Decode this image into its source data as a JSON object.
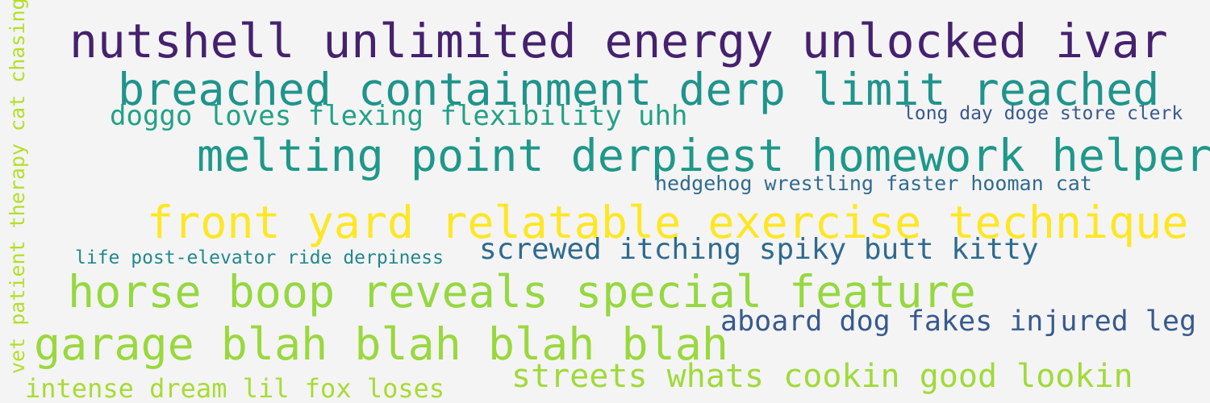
{
  "words": [
    {
      "text": "nutshell unlimited energy unlocked ivar",
      "color": "#45216e"
    },
    {
      "text": "breached containment derp limit reached",
      "color": "#1f948c"
    },
    {
      "text": "doggo loves flexing flexibility uhh",
      "color": "#22a186"
    },
    {
      "text": "long day doge store clerk",
      "color": "#38598c"
    },
    {
      "text": "melting point derpiest homework helper",
      "color": "#1e988a"
    },
    {
      "text": "hedgehog wrestling faster hooman cat",
      "color": "#306c8e"
    },
    {
      "text": "front yard relatable exercise technique",
      "color": "#fde725"
    },
    {
      "text": "life post-elevator ride derpiness",
      "color": "#23888e"
    },
    {
      "text": "screwed itching spiky butt kitty",
      "color": "#2f6b8e"
    },
    {
      "text": "horse boop reveals special feature",
      "color": "#95d840"
    },
    {
      "text": "aboard dog fakes injured leg",
      "color": "#375a8c"
    },
    {
      "text": "garage blah blah blah blah",
      "color": "#9ad83e"
    },
    {
      "text": "streets whats cookin good lookin",
      "color": "#a0da39"
    },
    {
      "text": "intense dream lil fox loses",
      "color": "#a8db34"
    },
    {
      "text": "vet patient therapy cat chasing",
      "color": "#b5de2b"
    }
  ]
}
